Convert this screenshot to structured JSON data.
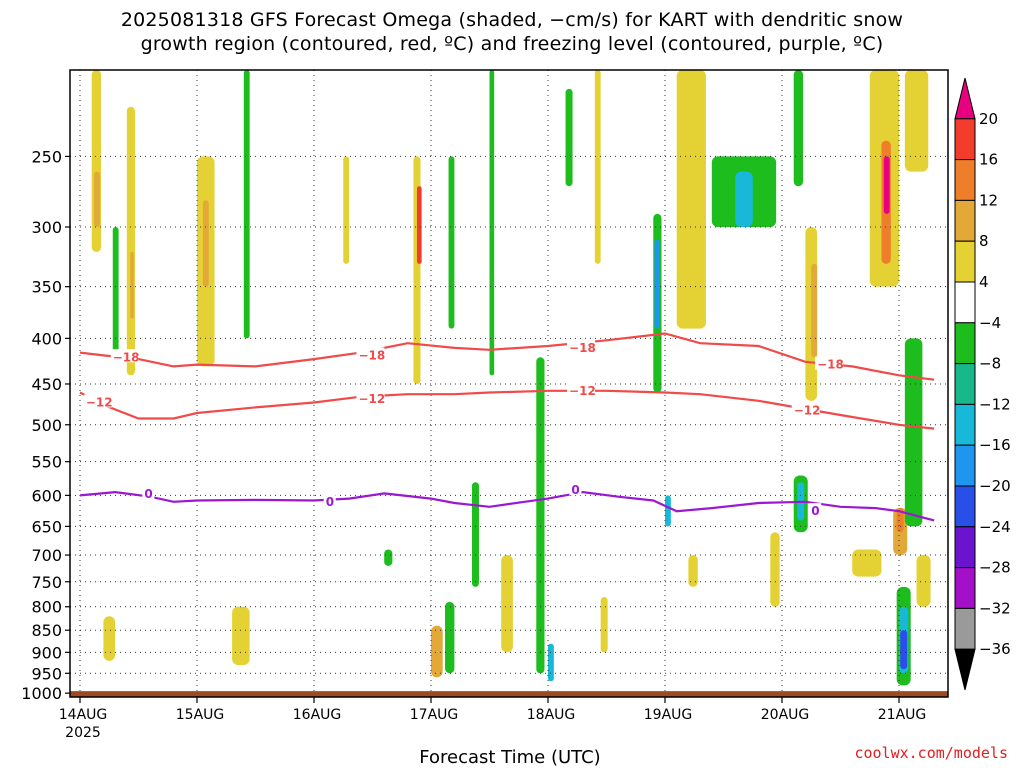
{
  "title": {
    "line1": "2025081318 GFS Forecast Omega (shaded, −cm/s) for KART with dendritic snow",
    "line2": "growth region (contoured, red, ºC) and freezing level (contoured, purple, ºC)"
  },
  "credit": "coolwx.com/models",
  "chart_data": {
    "type": "heatmap",
    "xlabel": "Forecast Time (UTC)",
    "ylabel": "",
    "x_ticks": [
      "14AUG",
      "15AUG",
      "16AUG",
      "17AUG",
      "18AUG",
      "19AUG",
      "20AUG",
      "21AUG"
    ],
    "x_year_label": "2025",
    "x_range_days": [
      0,
      7.3
    ],
    "y_ticks": [
      250,
      300,
      350,
      400,
      450,
      500,
      550,
      600,
      650,
      700,
      750,
      800,
      850,
      900,
      950,
      1000
    ],
    "y_range_hpa": [
      200,
      1010
    ],
    "y_scale": "log-pressure",
    "grid": "dotted",
    "colorbar": {
      "labels": [
        "20",
        "16",
        "12",
        "8",
        "4",
        "−4",
        "−8",
        "−12",
        "−16",
        "−20",
        "−24",
        "−28",
        "−32",
        "−36"
      ],
      "colors": [
        "#e8007f",
        "#f23c2c",
        "#ee7e2a",
        "#e2a838",
        "#e4d234",
        "#ffffff",
        "#1ebd1e",
        "#18b88a",
        "#18b8d8",
        "#1e96f0",
        "#2850e8",
        "#6a14d0",
        "#a410c8",
        "#9a9a9a",
        "#000000"
      ]
    },
    "contours": [
      {
        "label": "−18",
        "color": "#f04a4a",
        "points": [
          [
            0.0,
            415
          ],
          [
            0.2,
            418
          ],
          [
            0.5,
            422
          ],
          [
            0.8,
            430
          ],
          [
            1.0,
            428
          ],
          [
            1.5,
            430
          ],
          [
            2.0,
            422
          ],
          [
            2.4,
            415
          ],
          [
            2.8,
            405
          ],
          [
            3.2,
            410
          ],
          [
            3.5,
            412
          ],
          [
            4.0,
            408
          ],
          [
            4.5,
            402
          ],
          [
            5.0,
            395
          ],
          [
            5.3,
            405
          ],
          [
            5.8,
            408
          ],
          [
            6.2,
            425
          ],
          [
            6.6,
            430
          ],
          [
            7.0,
            440
          ],
          [
            7.3,
            445
          ]
        ]
      },
      {
        "label": "−12",
        "color": "#f04a4a",
        "points": [
          [
            0.0,
            460
          ],
          [
            0.2,
            475
          ],
          [
            0.5,
            492
          ],
          [
            0.8,
            492
          ],
          [
            1.0,
            485
          ],
          [
            1.5,
            478
          ],
          [
            2.0,
            472
          ],
          [
            2.4,
            465
          ],
          [
            2.8,
            462
          ],
          [
            3.2,
            462
          ],
          [
            3.5,
            460
          ],
          [
            4.0,
            458
          ],
          [
            4.5,
            458
          ],
          [
            5.0,
            460
          ],
          [
            5.3,
            462
          ],
          [
            5.8,
            470
          ],
          [
            6.2,
            480
          ],
          [
            6.6,
            490
          ],
          [
            7.0,
            500
          ],
          [
            7.3,
            505
          ]
        ]
      },
      {
        "label": "0",
        "color": "#9c18d0",
        "points": [
          [
            0.0,
            600
          ],
          [
            0.3,
            595
          ],
          [
            0.6,
            602
          ],
          [
            0.8,
            610
          ],
          [
            1.0,
            608
          ],
          [
            1.5,
            607
          ],
          [
            2.0,
            608
          ],
          [
            2.3,
            605
          ],
          [
            2.6,
            597
          ],
          [
            3.0,
            605
          ],
          [
            3.2,
            612
          ],
          [
            3.5,
            618
          ],
          [
            3.8,
            610
          ],
          [
            4.0,
            605
          ],
          [
            4.3,
            595
          ],
          [
            4.6,
            602
          ],
          [
            4.9,
            608
          ],
          [
            5.1,
            625
          ],
          [
            5.4,
            620
          ],
          [
            5.8,
            612
          ],
          [
            6.2,
            610
          ],
          [
            6.5,
            618
          ],
          [
            6.8,
            620
          ],
          [
            7.0,
            625
          ],
          [
            7.3,
            640
          ]
        ]
      }
    ],
    "contour_labels": [
      {
        "text": "−18",
        "x": 0.28,
        "p": 420
      },
      {
        "text": "−18",
        "x": 2.38,
        "p": 418
      },
      {
        "text": "−18",
        "x": 4.18,
        "p": 410
      },
      {
        "text": "−18",
        "x": 6.3,
        "p": 428
      },
      {
        "text": "−12",
        "x": 0.05,
        "p": 472
      },
      {
        "text": "−12",
        "x": 2.38,
        "p": 468
      },
      {
        "text": "−12",
        "x": 4.18,
        "p": 458
      },
      {
        "text": "−12",
        "x": 6.1,
        "p": 482
      },
      {
        "text": "0",
        "x": 0.55,
        "p": 598
      },
      {
        "text": "0",
        "x": 2.1,
        "p": 610
      },
      {
        "text": "0",
        "x": 4.2,
        "p": 592
      },
      {
        "text": "0",
        "x": 6.25,
        "p": 625
      }
    ],
    "omega_features": [
      {
        "x": 0.1,
        "w": 0.08,
        "p1": 200,
        "p2": 320,
        "color": "#e4d234"
      },
      {
        "x": 0.12,
        "w": 0.05,
        "p1": 260,
        "p2": 300,
        "color": "#e2a838"
      },
      {
        "x": 0.4,
        "w": 0.07,
        "p1": 220,
        "p2": 440,
        "color": "#e4d234"
      },
      {
        "x": 0.43,
        "w": 0.03,
        "p1": 320,
        "p2": 380,
        "color": "#e2a838"
      },
      {
        "x": 0.28,
        "w": 0.05,
        "p1": 300,
        "p2": 420,
        "color": "#1ebd1e"
      },
      {
        "x": 1.0,
        "w": 0.15,
        "p1": 250,
        "p2": 430,
        "color": "#e4d234"
      },
      {
        "x": 1.05,
        "w": 0.05,
        "p1": 280,
        "p2": 350,
        "color": "#e2a838"
      },
      {
        "x": 1.4,
        "w": 0.05,
        "p1": 200,
        "p2": 400,
        "color": "#1ebd1e"
      },
      {
        "x": 2.25,
        "w": 0.05,
        "p1": 250,
        "p2": 330,
        "color": "#e4d234"
      },
      {
        "x": 2.85,
        "w": 0.06,
        "p1": 250,
        "p2": 450,
        "color": "#e4d234"
      },
      {
        "x": 2.88,
        "w": 0.04,
        "p1": 270,
        "p2": 330,
        "color": "#f23c2c"
      },
      {
        "x": 3.15,
        "w": 0.05,
        "p1": 250,
        "p2": 390,
        "color": "#1ebd1e"
      },
      {
        "x": 3.5,
        "w": 0.04,
        "p1": 200,
        "p2": 440,
        "color": "#1ebd1e"
      },
      {
        "x": 4.15,
        "w": 0.06,
        "p1": 210,
        "p2": 270,
        "color": "#1ebd1e"
      },
      {
        "x": 4.4,
        "w": 0.05,
        "p1": 200,
        "p2": 330,
        "color": "#e4d234"
      },
      {
        "x": 4.9,
        "w": 0.07,
        "p1": 290,
        "p2": 460,
        "color": "#1ebd1e"
      },
      {
        "x": 4.91,
        "w": 0.04,
        "p1": 310,
        "p2": 390,
        "color": "#1e96f0"
      },
      {
        "x": 5.1,
        "w": 0.25,
        "p1": 200,
        "p2": 390,
        "color": "#e4d234"
      },
      {
        "x": 5.4,
        "w": 0.55,
        "p1": 250,
        "p2": 300,
        "color": "#1ebd1e"
      },
      {
        "x": 5.6,
        "w": 0.15,
        "p1": 260,
        "p2": 300,
        "color": "#18b8d8"
      },
      {
        "x": 6.1,
        "w": 0.08,
        "p1": 200,
        "p2": 270,
        "color": "#1ebd1e"
      },
      {
        "x": 6.2,
        "w": 0.1,
        "p1": 300,
        "p2": 470,
        "color": "#e4d234"
      },
      {
        "x": 6.25,
        "w": 0.05,
        "p1": 330,
        "p2": 420,
        "color": "#e2a838"
      },
      {
        "x": 6.75,
        "w": 0.25,
        "p1": 200,
        "p2": 350,
        "color": "#e4d234"
      },
      {
        "x": 6.85,
        "w": 0.08,
        "p1": 240,
        "p2": 330,
        "color": "#ee7e2a"
      },
      {
        "x": 6.87,
        "w": 0.05,
        "p1": 250,
        "p2": 290,
        "color": "#e8007f"
      },
      {
        "x": 7.05,
        "w": 0.2,
        "p1": 200,
        "p2": 260,
        "color": "#e4d234"
      },
      {
        "x": 2.6,
        "w": 0.07,
        "p1": 690,
        "p2": 720,
        "color": "#1ebd1e"
      },
      {
        "x": 3.35,
        "w": 0.06,
        "p1": 580,
        "p2": 760,
        "color": "#1ebd1e"
      },
      {
        "x": 3.9,
        "w": 0.07,
        "p1": 420,
        "p2": 950,
        "color": "#1ebd1e"
      },
      {
        "x": 4.0,
        "w": 0.05,
        "p1": 880,
        "p2": 970,
        "color": "#18b8d8"
      },
      {
        "x": 3.0,
        "w": 0.1,
        "p1": 840,
        "p2": 960,
        "color": "#e2a838"
      },
      {
        "x": 3.12,
        "w": 0.08,
        "p1": 790,
        "p2": 950,
        "color": "#1ebd1e"
      },
      {
        "x": 1.3,
        "w": 0.15,
        "p1": 800,
        "p2": 930,
        "color": "#e4d234"
      },
      {
        "x": 0.2,
        "w": 0.1,
        "p1": 820,
        "p2": 920,
        "color": "#e4d234"
      },
      {
        "x": 3.6,
        "w": 0.1,
        "p1": 700,
        "p2": 900,
        "color": "#e4d234"
      },
      {
        "x": 4.45,
        "w": 0.06,
        "p1": 780,
        "p2": 900,
        "color": "#e4d234"
      },
      {
        "x": 5.2,
        "w": 0.08,
        "p1": 700,
        "p2": 760,
        "color": "#e4d234"
      },
      {
        "x": 5.9,
        "w": 0.08,
        "p1": 660,
        "p2": 800,
        "color": "#e4d234"
      },
      {
        "x": 6.1,
        "w": 0.12,
        "p1": 570,
        "p2": 660,
        "color": "#1ebd1e"
      },
      {
        "x": 6.13,
        "w": 0.06,
        "p1": 580,
        "p2": 640,
        "color": "#18b8d8"
      },
      {
        "x": 6.6,
        "w": 0.25,
        "p1": 690,
        "p2": 740,
        "color": "#e4d234"
      },
      {
        "x": 6.95,
        "w": 0.12,
        "p1": 620,
        "p2": 700,
        "color": "#e2a838"
      },
      {
        "x": 6.98,
        "w": 0.06,
        "p1": 620,
        "p2": 660,
        "color": "#ee7e2a"
      },
      {
        "x": 7.05,
        "w": 0.15,
        "p1": 400,
        "p2": 650,
        "color": "#1ebd1e"
      },
      {
        "x": 6.98,
        "w": 0.12,
        "p1": 760,
        "p2": 980,
        "color": "#1ebd1e"
      },
      {
        "x": 7.0,
        "w": 0.08,
        "p1": 800,
        "p2": 950,
        "color": "#18b8d8"
      },
      {
        "x": 7.01,
        "w": 0.06,
        "p1": 850,
        "p2": 940,
        "color": "#2850e8"
      },
      {
        "x": 7.15,
        "w": 0.12,
        "p1": 700,
        "p2": 800,
        "color": "#e4d234"
      },
      {
        "x": 5.0,
        "w": 0.05,
        "p1": 600,
        "p2": 650,
        "color": "#18b8d8"
      }
    ]
  }
}
